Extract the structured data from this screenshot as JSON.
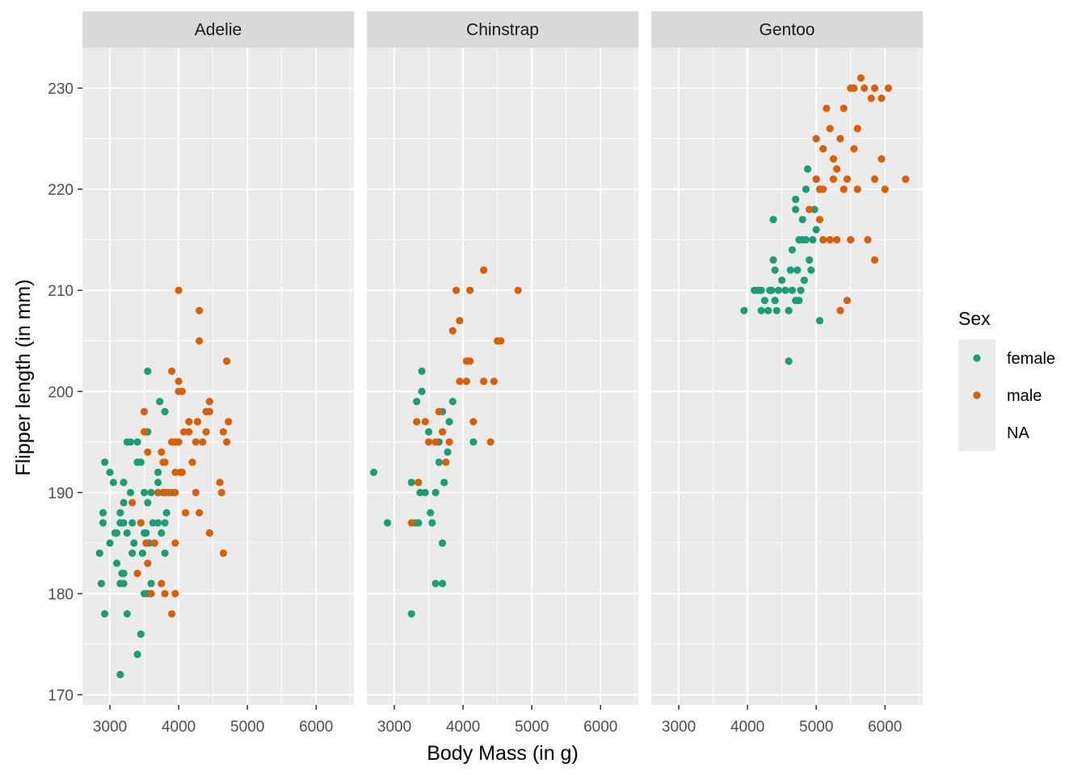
{
  "chart_data": {
    "type": "scatter",
    "facet_by": "species",
    "facets": [
      "Adelie",
      "Chinstrap",
      "Gentoo"
    ],
    "xlabel": "Body Mass (in g)",
    "ylabel": "Flipper length (in mm)",
    "xlim": [
      2600,
      6550
    ],
    "ylim": [
      169,
      234
    ],
    "x_ticks": [
      3000,
      4000,
      5000,
      6000
    ],
    "y_ticks": [
      170,
      180,
      190,
      200,
      210,
      220,
      230
    ],
    "grid": true,
    "legend": {
      "title": "Sex",
      "placement": "right",
      "entries": [
        {
          "label": "female",
          "color": "#1B9E77"
        },
        {
          "label": "male",
          "color": "#D95F02"
        },
        {
          "label": "NA",
          "color": ""
        }
      ]
    },
    "series": [
      {
        "facet": "Adelie",
        "name": "female",
        "color": "#1B9E77",
        "points": [
          [
            2850,
            184
          ],
          [
            2875,
            181
          ],
          [
            2900,
            188
          ],
          [
            2900,
            187
          ],
          [
            2925,
            178
          ],
          [
            2925,
            193
          ],
          [
            3000,
            185
          ],
          [
            3000,
            192
          ],
          [
            3050,
            191
          ],
          [
            3075,
            186
          ],
          [
            3100,
            186
          ],
          [
            3100,
            183
          ],
          [
            3150,
            187
          ],
          [
            3150,
            188
          ],
          [
            3150,
            181
          ],
          [
            3150,
            172
          ],
          [
            3175,
            182
          ],
          [
            3200,
            191
          ],
          [
            3200,
            187
          ],
          [
            3200,
            182
          ],
          [
            3200,
            181
          ],
          [
            3200,
            189
          ],
          [
            3250,
            178
          ],
          [
            3250,
            195
          ],
          [
            3250,
            186
          ],
          [
            3300,
            190
          ],
          [
            3300,
            195
          ],
          [
            3325,
            187
          ],
          [
            3325,
            184
          ],
          [
            3350,
            185
          ],
          [
            3400,
            193
          ],
          [
            3400,
            174
          ],
          [
            3400,
            195
          ],
          [
            3450,
            176
          ],
          [
            3450,
            187
          ],
          [
            3450,
            193
          ],
          [
            3475,
            184
          ],
          [
            3500,
            190
          ],
          [
            3500,
            180
          ],
          [
            3500,
            186
          ],
          [
            3525,
            186
          ],
          [
            3550,
            189
          ],
          [
            3550,
            202
          ],
          [
            3550,
            196
          ],
          [
            3550,
            180
          ],
          [
            3575,
            185
          ],
          [
            3600,
            190
          ],
          [
            3600,
            181
          ],
          [
            3625,
            187
          ],
          [
            3700,
            187
          ],
          [
            3700,
            192
          ],
          [
            3700,
            191
          ],
          [
            3725,
            199
          ],
          [
            3750,
            186
          ],
          [
            3775,
            190
          ],
          [
            3800,
            198
          ],
          [
            3800,
            187
          ],
          [
            3800,
            184
          ],
          [
            3825,
            188
          ],
          [
            3900,
            190
          ]
        ]
      },
      {
        "facet": "Adelie",
        "name": "male",
        "color": "#D95F02",
        "points": [
          [
            3325,
            189
          ],
          [
            3400,
            182
          ],
          [
            3450,
            187
          ],
          [
            3500,
            196
          ],
          [
            3500,
            198
          ],
          [
            3525,
            185
          ],
          [
            3550,
            183
          ],
          [
            3550,
            194
          ],
          [
            3600,
            180
          ],
          [
            3650,
            185
          ],
          [
            3700,
            190
          ],
          [
            3750,
            181
          ],
          [
            3750,
            194
          ],
          [
            3775,
            193
          ],
          [
            3800,
            190
          ],
          [
            3800,
            180
          ],
          [
            3800,
            193
          ],
          [
            3850,
            190
          ],
          [
            3900,
            195
          ],
          [
            3900,
            202
          ],
          [
            3900,
            178
          ],
          [
            3950,
            185
          ],
          [
            3950,
            180
          ],
          [
            3950,
            195
          ],
          [
            3950,
            192
          ],
          [
            3950,
            190
          ],
          [
            4000,
            210
          ],
          [
            4000,
            201
          ],
          [
            4000,
            200
          ],
          [
            4000,
            195
          ],
          [
            4025,
            192
          ],
          [
            4050,
            200
          ],
          [
            4050,
            192
          ],
          [
            4075,
            196
          ],
          [
            4100,
            188
          ],
          [
            4150,
            197
          ],
          [
            4150,
            196
          ],
          [
            4200,
            193
          ],
          [
            4250,
            195
          ],
          [
            4250,
            190
          ],
          [
            4275,
            197
          ],
          [
            4300,
            208
          ],
          [
            4300,
            205
          ],
          [
            4300,
            188
          ],
          [
            4350,
            195
          ],
          [
            4400,
            198
          ],
          [
            4400,
            196
          ],
          [
            4450,
            186
          ],
          [
            4450,
            199
          ],
          [
            4450,
            198
          ],
          [
            4600,
            191
          ],
          [
            4625,
            190
          ],
          [
            4650,
            184
          ],
          [
            4650,
            196
          ],
          [
            4700,
            203
          ],
          [
            4700,
            195
          ],
          [
            4725,
            197
          ]
        ]
      },
      {
        "facet": "Chinstrap",
        "name": "female",
        "color": "#1B9E77",
        "points": [
          [
            2700,
            192
          ],
          [
            2900,
            187
          ],
          [
            3250,
            178
          ],
          [
            3250,
            191
          ],
          [
            3300,
            187
          ],
          [
            3325,
            199
          ],
          [
            3350,
            187
          ],
          [
            3375,
            190
          ],
          [
            3400,
            200
          ],
          [
            3400,
            202
          ],
          [
            3450,
            190
          ],
          [
            3500,
            196
          ],
          [
            3525,
            188
          ],
          [
            3550,
            187
          ],
          [
            3600,
            181
          ],
          [
            3600,
            190
          ],
          [
            3650,
            195
          ],
          [
            3650,
            193
          ],
          [
            3700,
            198
          ],
          [
            3700,
            181
          ],
          [
            3700,
            185
          ],
          [
            3725,
            191
          ],
          [
            3775,
            194
          ],
          [
            3800,
            197
          ],
          [
            3850,
            199
          ],
          [
            4150,
            195
          ]
        ]
      },
      {
        "facet": "Chinstrap",
        "name": "male",
        "color": "#D95F02",
        "points": [
          [
            3250,
            187
          ],
          [
            3325,
            197
          ],
          [
            3350,
            191
          ],
          [
            3450,
            197
          ],
          [
            3500,
            195
          ],
          [
            3600,
            195
          ],
          [
            3650,
            198
          ],
          [
            3700,
            196
          ],
          [
            3750,
            193
          ],
          [
            3800,
            195
          ],
          [
            3850,
            206
          ],
          [
            3900,
            210
          ],
          [
            3950,
            207
          ],
          [
            3950,
            201
          ],
          [
            4050,
            201
          ],
          [
            4050,
            203
          ],
          [
            4100,
            203
          ],
          [
            4100,
            210
          ],
          [
            4150,
            197
          ],
          [
            4300,
            201
          ],
          [
            4300,
            212
          ],
          [
            4400,
            195
          ],
          [
            4450,
            201
          ],
          [
            4500,
            205
          ],
          [
            4550,
            205
          ],
          [
            4800,
            210
          ]
        ]
      },
      {
        "facet": "Gentoo",
        "name": "female",
        "color": "#1B9E77",
        "points": [
          [
            3950,
            208
          ],
          [
            4100,
            210
          ],
          [
            4150,
            210
          ],
          [
            4200,
            210
          ],
          [
            4200,
            208
          ],
          [
            4250,
            209
          ],
          [
            4300,
            208
          ],
          [
            4325,
            210
          ],
          [
            4350,
            210
          ],
          [
            4375,
            217
          ],
          [
            4375,
            213
          ],
          [
            4400,
            209
          ],
          [
            4400,
            212
          ],
          [
            4425,
            208
          ],
          [
            4450,
            210
          ],
          [
            4500,
            211
          ],
          [
            4550,
            210
          ],
          [
            4600,
            208
          ],
          [
            4600,
            203
          ],
          [
            4625,
            212
          ],
          [
            4650,
            210
          ],
          [
            4650,
            214
          ],
          [
            4700,
            218
          ],
          [
            4700,
            219
          ],
          [
            4700,
            209
          ],
          [
            4725,
            212
          ],
          [
            4750,
            215
          ],
          [
            4750,
            209
          ],
          [
            4775,
            210
          ],
          [
            4800,
            215
          ],
          [
            4800,
            217
          ],
          [
            4825,
            211
          ],
          [
            4850,
            215
          ],
          [
            4850,
            220
          ],
          [
            4875,
            222
          ],
          [
            4900,
            213
          ],
          [
            4925,
            212
          ],
          [
            4950,
            215
          ],
          [
            4975,
            218
          ],
          [
            5000,
            216
          ],
          [
            5050,
            207
          ]
        ]
      },
      {
        "facet": "Gentoo",
        "name": "male",
        "color": "#D95F02",
        "points": [
          [
            4900,
            218
          ],
          [
            5000,
            225
          ],
          [
            5000,
            221
          ],
          [
            5050,
            220
          ],
          [
            5050,
            217
          ],
          [
            5100,
            224
          ],
          [
            5100,
            220
          ],
          [
            5100,
            215
          ],
          [
            5150,
            228
          ],
          [
            5200,
            226
          ],
          [
            5200,
            215
          ],
          [
            5250,
            223
          ],
          [
            5250,
            221
          ],
          [
            5300,
            215
          ],
          [
            5300,
            222
          ],
          [
            5350,
            225
          ],
          [
            5350,
            208
          ],
          [
            5400,
            228
          ],
          [
            5400,
            220
          ],
          [
            5450,
            221
          ],
          [
            5450,
            209
          ],
          [
            5500,
            230
          ],
          [
            5500,
            215
          ],
          [
            5550,
            224
          ],
          [
            5550,
            230
          ],
          [
            5600,
            226
          ],
          [
            5600,
            220
          ],
          [
            5650,
            231
          ],
          [
            5700,
            230
          ],
          [
            5750,
            215
          ],
          [
            5800,
            229
          ],
          [
            5850,
            221
          ],
          [
            5850,
            213
          ],
          [
            5850,
            230
          ],
          [
            5950,
            223
          ],
          [
            5950,
            229
          ],
          [
            6000,
            220
          ],
          [
            6050,
            230
          ],
          [
            6300,
            221
          ]
        ]
      }
    ]
  }
}
